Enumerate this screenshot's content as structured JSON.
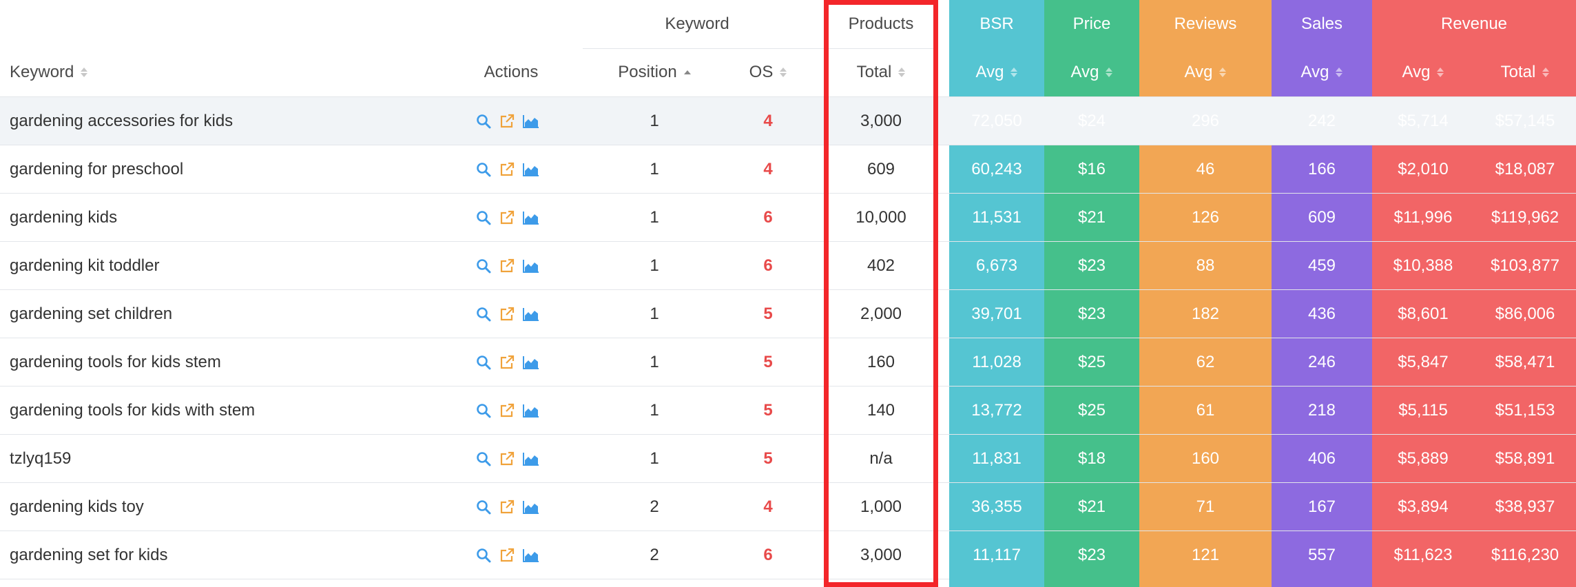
{
  "header": {
    "keyword_group": "Keyword",
    "products_group": "Products",
    "bsr_group": "BSR",
    "price_group": "Price",
    "reviews_group": "Reviews",
    "sales_group": "Sales",
    "revenue_group": "Revenue",
    "keyword_col": "Keyword",
    "actions_col": "Actions",
    "position_col": "Position",
    "os_col": "OS",
    "products_total_col": "Total",
    "bsr_avg_col": "Avg",
    "price_avg_col": "Avg",
    "reviews_avg_col": "Avg",
    "sales_avg_col": "Avg",
    "revenue_avg_col": "Avg",
    "revenue_total_col": "Total"
  },
  "colors": {
    "bsr": "#55c5d2",
    "price": "#45c08b",
    "reviews": "#f2a654",
    "sales": "#8d6ae0",
    "revenue": "#f26566",
    "os_text": "#e84a4a",
    "highlight": "#f3262a"
  },
  "icons": [
    "search-icon",
    "external-link-icon",
    "chart-icon"
  ],
  "rows": [
    {
      "keyword": "gardening accessories for kids",
      "position": "1",
      "os": "4",
      "products_total": "3,000",
      "bsr": "72,050",
      "price": "$24",
      "reviews": "296",
      "sales": "242",
      "revenue_avg": "$5,714",
      "revenue_total": "$57,145"
    },
    {
      "keyword": "gardening for preschool",
      "position": "1",
      "os": "4",
      "products_total": "609",
      "bsr": "60,243",
      "price": "$16",
      "reviews": "46",
      "sales": "166",
      "revenue_avg": "$2,010",
      "revenue_total": "$18,087"
    },
    {
      "keyword": "gardening kids",
      "position": "1",
      "os": "6",
      "products_total": "10,000",
      "bsr": "11,531",
      "price": "$21",
      "reviews": "126",
      "sales": "609",
      "revenue_avg": "$11,996",
      "revenue_total": "$119,962"
    },
    {
      "keyword": "gardening kit toddler",
      "position": "1",
      "os": "6",
      "products_total": "402",
      "bsr": "6,673",
      "price": "$23",
      "reviews": "88",
      "sales": "459",
      "revenue_avg": "$10,388",
      "revenue_total": "$103,877"
    },
    {
      "keyword": "gardening set children",
      "position": "1",
      "os": "5",
      "products_total": "2,000",
      "bsr": "39,701",
      "price": "$23",
      "reviews": "182",
      "sales": "436",
      "revenue_avg": "$8,601",
      "revenue_total": "$86,006"
    },
    {
      "keyword": "gardening tools for kids stem",
      "position": "1",
      "os": "5",
      "products_total": "160",
      "bsr": "11,028",
      "price": "$25",
      "reviews": "62",
      "sales": "246",
      "revenue_avg": "$5,847",
      "revenue_total": "$58,471"
    },
    {
      "keyword": "gardening tools for kids with stem",
      "position": "1",
      "os": "5",
      "products_total": "140",
      "bsr": "13,772",
      "price": "$25",
      "reviews": "61",
      "sales": "218",
      "revenue_avg": "$5,115",
      "revenue_total": "$51,153"
    },
    {
      "keyword": "tzlyq159",
      "position": "1",
      "os": "5",
      "products_total": "n/a",
      "bsr": "11,831",
      "price": "$18",
      "reviews": "160",
      "sales": "406",
      "revenue_avg": "$5,889",
      "revenue_total": "$58,891"
    },
    {
      "keyword": "gardening kids toy",
      "position": "2",
      "os": "4",
      "products_total": "1,000",
      "bsr": "36,355",
      "price": "$21",
      "reviews": "71",
      "sales": "167",
      "revenue_avg": "$3,894",
      "revenue_total": "$38,937"
    },
    {
      "keyword": "gardening set for kids",
      "position": "2",
      "os": "6",
      "products_total": "3,000",
      "bsr": "11,117",
      "price": "$23",
      "reviews": "121",
      "sales": "557",
      "revenue_avg": "$11,623",
      "revenue_total": "$116,230"
    }
  ]
}
